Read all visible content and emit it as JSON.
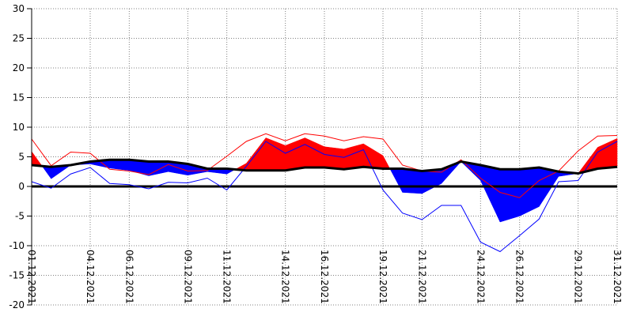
{
  "chart_data": {
    "type": "area",
    "title": "",
    "xlabel": "",
    "ylabel": "",
    "ylim": [
      -20,
      30
    ],
    "yticks": [
      30,
      25,
      20,
      15,
      10,
      5,
      0,
      -5,
      -10,
      -15,
      -20
    ],
    "grid": true,
    "x_tick_labels": [
      {
        "day": 1,
        "label": "01.12.2021"
      },
      {
        "day": 4,
        "label": "04.12.2021"
      },
      {
        "day": 6,
        "label": "06.12.2021"
      },
      {
        "day": 9,
        "label": "09.12.2021"
      },
      {
        "day": 11,
        "label": "11.12.2021"
      },
      {
        "day": 14,
        "label": "14.12.2021"
      },
      {
        "day": 16,
        "label": "16.12.2021"
      },
      {
        "day": 19,
        "label": "19.12.2021"
      },
      {
        "day": 21,
        "label": "21.12.2021"
      },
      {
        "day": 24,
        "label": "24.12.2021"
      },
      {
        "day": 26,
        "label": "26.12.2021"
      },
      {
        "day": 29,
        "label": "29.12.2021"
      },
      {
        "day": 31,
        "label": "31.12.2021"
      }
    ],
    "days": [
      1,
      2,
      3,
      4,
      5,
      6,
      7,
      8,
      9,
      10,
      11,
      12,
      13,
      14,
      15,
      16,
      17,
      18,
      19,
      20,
      21,
      22,
      23,
      24,
      25,
      26,
      27,
      28,
      29,
      30,
      31
    ],
    "series": [
      {
        "values": [
          3.6,
          3.3,
          3.6,
          4.2,
          4.5,
          4.5,
          4.2,
          4.2,
          3.8,
          3.0,
          3.0,
          2.7,
          2.7,
          2.7,
          3.2,
          3.2,
          2.9,
          3.3,
          3.0,
          3.0,
          2.6,
          2.9,
          4.2,
          3.6,
          2.9,
          2.9,
          3.2,
          2.5,
          2.2,
          3.0,
          3.3
        ]
      },
      {
        "values": [
          5.9,
          1.3,
          3.6,
          3.8,
          3.1,
          2.7,
          1.8,
          2.5,
          1.9,
          2.5,
          2.1,
          3.9,
          8.2,
          6.9,
          8.2,
          6.7,
          6.3,
          7.2,
          5.2,
          -1.0,
          -1.2,
          0.5,
          4.2,
          1.0,
          -6.0,
          -5.0,
          -3.4,
          1.7,
          2.2,
          6.6,
          8.1
        ]
      },
      {
        "values": [
          8.0,
          3.5,
          5.8,
          5.6,
          2.9,
          2.6,
          2.0,
          3.7,
          2.6,
          2.7,
          5.1,
          7.6,
          8.9,
          7.7,
          8.9,
          8.5,
          7.7,
          8.4,
          8.0,
          3.6,
          2.6,
          2.4,
          4.5,
          1.4,
          -1.0,
          -1.9,
          1.0,
          2.6,
          6.0,
          8.5,
          8.6
        ]
      },
      {
        "values": [
          0.8,
          -0.3,
          2.1,
          3.2,
          0.5,
          0.3,
          -0.4,
          0.7,
          0.6,
          1.4,
          -0.6,
          3.4,
          7.6,
          5.6,
          7.1,
          5.4,
          4.9,
          6.2,
          -0.6,
          -4.5,
          -5.6,
          -3.2,
          -3.2,
          -9.4,
          -11.0,
          -8.3,
          -5.5,
          0.8,
          1.0,
          5.8,
          7.6
        ]
      }
    ],
    "colors": {
      "reference_line": "#000000",
      "actual_smooth": "#000000",
      "above_fill": "#ff0000",
      "below_fill": "#0000ff",
      "max_line": "#ff0000",
      "min_line": "#0000ff",
      "grid": "#808080",
      "axis": "#000000"
    }
  }
}
